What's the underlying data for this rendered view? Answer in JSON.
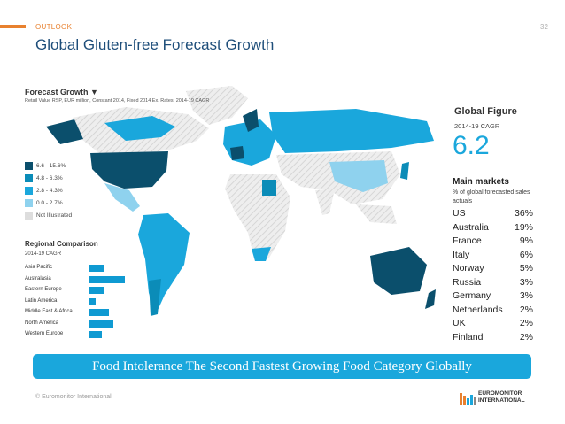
{
  "header": {
    "section": "OUTLOOK",
    "page_number": "32",
    "title": "Global Gluten-free Forecast Growth"
  },
  "map": {
    "title": "Forecast Growth ▼",
    "subtitle": "Retail Value RSP, EUR million, Constant 2014, Fixed 2014 Ex. Rates, 2014-19 CAGR",
    "legend": [
      {
        "label": "6.6 - 15.6%",
        "color": "#0b4f6c"
      },
      {
        "label": "4.8 - 6.3%",
        "color": "#0b8cb8"
      },
      {
        "label": "2.8 - 4.3%",
        "color": "#1aa7dc"
      },
      {
        "label": "0.0 - 2.7%",
        "color": "#8fd2ee"
      },
      {
        "label": "Not Illustrated",
        "color": "#dddddd"
      }
    ]
  },
  "regional": {
    "title": "Regional Comparison",
    "subtitle": "2014-19 CAGR",
    "items": [
      {
        "label": "Asia Pacific",
        "value": 4.5
      },
      {
        "label": "Australasia",
        "value": 11
      },
      {
        "label": "Eastern Europe",
        "value": 4.5
      },
      {
        "label": "Latin America",
        "value": 2
      },
      {
        "label": "Middle East & Africa",
        "value": 6
      },
      {
        "label": "North America",
        "value": 7.5
      },
      {
        "label": "Western Europe",
        "value": 4
      }
    ]
  },
  "global_figure": {
    "title": "Global Figure",
    "subtitle": "2014-19 CAGR",
    "value": "6.2"
  },
  "main_markets": {
    "title": "Main markets",
    "subtitle": "% of global forecasted sales actuals",
    "rows": [
      {
        "country": "US",
        "pct": "36%"
      },
      {
        "country": "Australia",
        "pct": "19%"
      },
      {
        "country": "France",
        "pct": "9%"
      },
      {
        "country": "Italy",
        "pct": "6%"
      },
      {
        "country": "Norway",
        "pct": "5%"
      },
      {
        "country": "Russia",
        "pct": "3%"
      },
      {
        "country": "Germany",
        "pct": "3%"
      },
      {
        "country": "Netherlands",
        "pct": "2%"
      },
      {
        "country": "UK",
        "pct": "2%"
      },
      {
        "country": "Finland",
        "pct": "2%"
      }
    ]
  },
  "banner": "Food Intolerance The Second Fastest Growing Food Category Globally",
  "footer": "© Euromonitor International",
  "logo": {
    "line1": "EUROMONITOR",
    "line2": "INTERNATIONAL"
  }
}
